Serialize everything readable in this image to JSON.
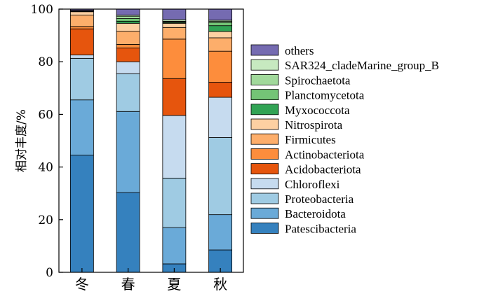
{
  "chart_data": {
    "type": "bar",
    "stacked": true,
    "title": "",
    "xlabel": "",
    "ylabel": "相对丰度/%",
    "ylim": [
      0,
      100
    ],
    "yticks": [
      0,
      20,
      40,
      60,
      80,
      100
    ],
    "categories": [
      "冬",
      "春",
      "夏",
      "秋"
    ],
    "legend_position": "right",
    "series": [
      {
        "name": "Patescibacteria",
        "color": "#3581be",
        "values": [
          44.5,
          30.3,
          3.2,
          8.5
        ]
      },
      {
        "name": "Bacteroidota",
        "color": "#6aaad8",
        "values": [
          21.0,
          30.8,
          13.8,
          13.4
        ]
      },
      {
        "name": "Proteobacteria",
        "color": "#9fcbe3",
        "values": [
          15.8,
          14.3,
          18.8,
          29.3
        ]
      },
      {
        "name": "Chloroflexi",
        "color": "#c6dbef",
        "values": [
          1.3,
          4.6,
          23.8,
          15.3
        ]
      },
      {
        "name": "Acidobacteriota",
        "color": "#e6550d",
        "values": [
          9.9,
          5.2,
          14.0,
          5.7
        ]
      },
      {
        "name": "Actinobacteriota",
        "color": "#fd8d3c",
        "values": [
          0.9,
          1.4,
          15.0,
          11.8
        ]
      },
      {
        "name": "Firmicutes",
        "color": "#fdae6b",
        "values": [
          4.3,
          5.0,
          4.4,
          5.1
        ]
      },
      {
        "name": "Nitrospirota",
        "color": "#fdd0a2",
        "values": [
          1.3,
          3.0,
          1.6,
          2.4
        ]
      },
      {
        "name": "Myxococcota",
        "color": "#31a354",
        "values": [
          0.2,
          0.8,
          0.3,
          2.2
        ]
      },
      {
        "name": "Planctomycetota",
        "color": "#74c476",
        "values": [
          0.1,
          1.0,
          0.3,
          1.2
        ]
      },
      {
        "name": "Spirochaetota",
        "color": "#a1d99b",
        "values": [
          0.1,
          0.9,
          0.2,
          0.5
        ]
      },
      {
        "name": "SAR324_cladeMarine_group_B",
        "color": "#c7e9c0",
        "values": [
          0.1,
          0.4,
          0.6,
          0.4
        ]
      },
      {
        "name": "others",
        "color": "#756bb1",
        "values": [
          0.5,
          2.3,
          4.0,
          4.2
        ]
      }
    ]
  }
}
